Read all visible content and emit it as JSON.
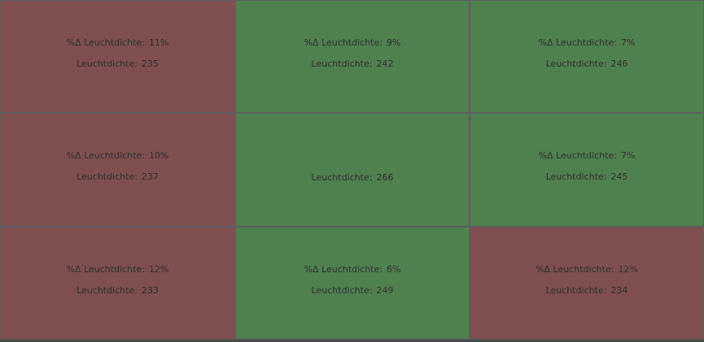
{
  "cells": [
    {
      "delta_label": "%Δ Leuchtdichte:",
      "delta": "11%",
      "label": "Leuchtdichte:",
      "value": "235",
      "color": "#7f4f4f"
    },
    {
      "delta_label": "%Δ Leuchtdichte:",
      "delta": "9%",
      "label": "Leuchtdichte:",
      "value": "242",
      "color": "#4f804f"
    },
    {
      "delta_label": "%Δ Leuchtdichte:",
      "delta": "7%",
      "label": "Leuchtdichte:",
      "value": "246",
      "color": "#4f804f"
    },
    {
      "delta_label": "%Δ Leuchtdichte:",
      "delta": "10%",
      "label": "Leuchtdichte:",
      "value": "237",
      "color": "#7f4f4f"
    },
    {
      "label": "Leuchtdichte:",
      "value": "266",
      "color": "#4f804f"
    },
    {
      "delta_label": "%Δ Leuchtdichte:",
      "delta": "7%",
      "label": "Leuchtdichte:",
      "value": "245",
      "color": "#4f804f"
    },
    {
      "delta_label": "%Δ Leuchtdichte:",
      "delta": "12%",
      "label": "Leuchtdichte:",
      "value": "233",
      "color": "#7f4f4f"
    },
    {
      "delta_label": "%Δ Leuchtdichte:",
      "delta": "6%",
      "label": "Leuchtdichte:",
      "value": "249",
      "color": "#4f804f"
    },
    {
      "delta_label": "%Δ Leuchtdichte:",
      "delta": "12%",
      "label": "Leuchtdichte:",
      "value": "234",
      "color": "#7f4f4f"
    }
  ]
}
